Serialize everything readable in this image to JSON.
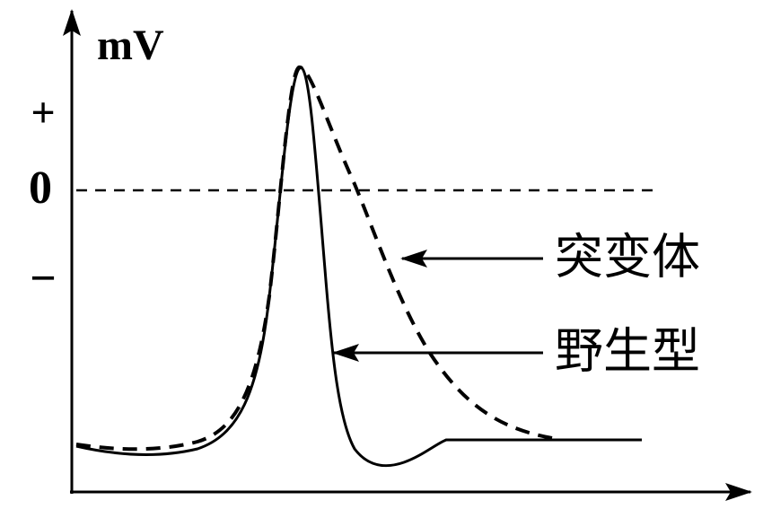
{
  "axis": {
    "unit": "mV",
    "marks": {
      "plus": "+",
      "zero": "0",
      "minus": "−"
    }
  },
  "curves": {
    "mutant": {
      "label": "突变体"
    },
    "wild_type": {
      "label": "野生型"
    }
  }
}
